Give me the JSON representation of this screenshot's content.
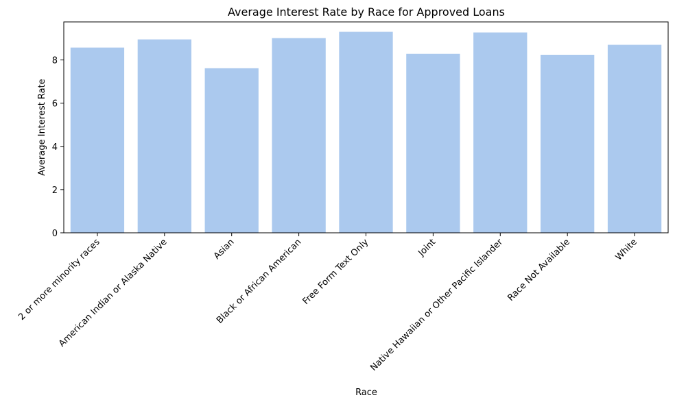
{
  "chart_data": {
    "type": "bar",
    "title": "Average Interest Rate by Race for Approved Loans",
    "xlabel": "Race",
    "ylabel": "Average Interest Rate",
    "categories": [
      "2 or more minority races",
      "American Indian or Alaska Native",
      "Asian",
      "Black or African American",
      "Free Form Text Only",
      "Joint",
      "Native Hawaiian or Other Pacific Islander",
      "Race Not Available",
      "White"
    ],
    "values": [
      8.57,
      8.95,
      7.62,
      9.01,
      9.3,
      8.28,
      9.27,
      8.24,
      8.7
    ],
    "ylim": [
      0,
      9.76
    ],
    "yticks": [
      0,
      2,
      4,
      6,
      8
    ],
    "bar_color": "#abc9ee",
    "grid": false,
    "legend": "none"
  }
}
